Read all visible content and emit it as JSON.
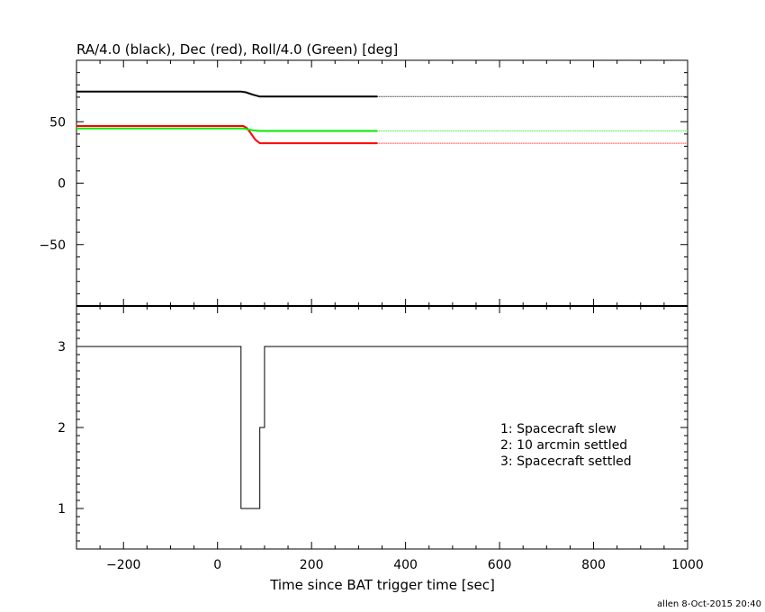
{
  "chart_data": [
    {
      "type": "line",
      "title": "RA/4.0 (black), Dec (red), Roll/4.0 (Green) [deg]",
      "xlim": [
        -300,
        1000
      ],
      "ylim": [
        -100,
        100
      ],
      "x_ticks": [
        "-200",
        "0",
        "200",
        "400",
        "600",
        "800",
        "1000"
      ],
      "y_ticks": [
        "50",
        "0",
        "−50"
      ],
      "series": [
        {
          "color": "#000000",
          "solid": [
            [
              -300,
              74.5
            ],
            [
              50,
              74.5
            ],
            [
              60,
              74.0
            ],
            [
              75,
              72.0
            ],
            [
              90,
              70.5
            ],
            [
              340,
              70.5
            ]
          ],
          "dotted": [
            [
              340,
              70.5
            ],
            [
              1000,
              70.5
            ]
          ]
        },
        {
          "color": "#ff0000",
          "solid": [
            [
              -300,
              46.5
            ],
            [
              55,
              46.5
            ],
            [
              62,
              45.0
            ],
            [
              70,
              41.0
            ],
            [
              80,
              35.5
            ],
            [
              90,
              32.5
            ],
            [
              340,
              32.5
            ]
          ],
          "dotted": [
            [
              340,
              32.5
            ],
            [
              1000,
              32.5
            ]
          ]
        },
        {
          "color": "#00ee00",
          "solid": [
            [
              -300,
              44.5
            ],
            [
              55,
              44.5
            ],
            [
              75,
              43.0
            ],
            [
              90,
              42.5
            ],
            [
              340,
              42.5
            ]
          ],
          "dotted": [
            [
              340,
              42.5
            ],
            [
              1000,
              42.5
            ]
          ]
        }
      ]
    },
    {
      "type": "line",
      "xlabel": "Time since BAT trigger time [sec]",
      "xlim": [
        -300,
        1000
      ],
      "ylim": [
        0.5,
        3.5
      ],
      "x_ticks": [
        "−200",
        "0",
        "200",
        "400",
        "600",
        "800",
        "1000"
      ],
      "y_ticks": [
        "3",
        "2",
        "1"
      ],
      "series": [
        {
          "color": "#000000",
          "step": [
            [
              -300,
              3
            ],
            [
              50,
              3
            ],
            [
              50,
              1
            ],
            [
              90,
              1
            ],
            [
              90,
              2
            ],
            [
              100,
              2
            ],
            [
              100,
              3
            ],
            [
              1000,
              3
            ]
          ]
        }
      ],
      "legend": [
        "1: Spacecraft slew",
        "2: 10 arcmin settled",
        "3: Spacecraft settled"
      ],
      "legend_placement": "right"
    }
  ],
  "footer": "allen  8-Oct-2015 20:40"
}
